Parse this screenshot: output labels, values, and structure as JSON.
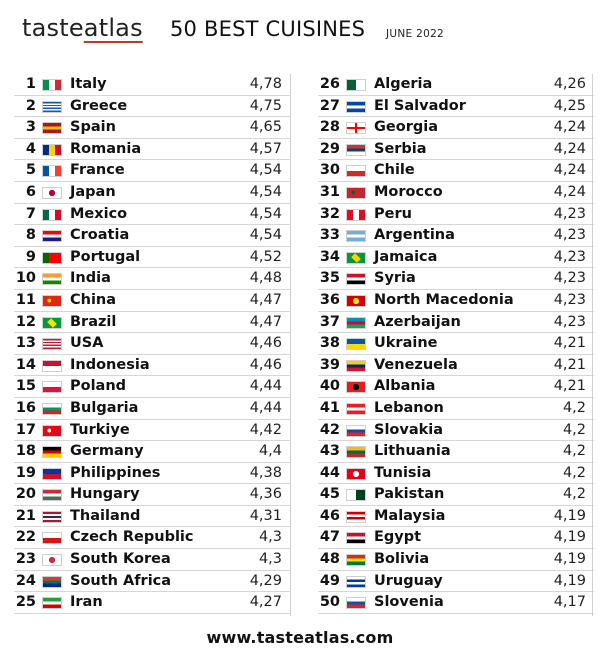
{
  "header": {
    "logo_main": "taste",
    "logo_accent": "atlas",
    "title": "50 BEST CUISINES",
    "date": "JUNE 2022"
  },
  "left_column": [
    {
      "rank": "1",
      "country": "Italy",
      "score": "4,78",
      "flag_colors": [
        "#009246",
        "#ffffff",
        "#ce2b37"
      ],
      "flag_layout": "vertical"
    },
    {
      "rank": "2",
      "country": "Greece",
      "score": "4,75",
      "flag_colors": [
        "#0d5eaf",
        "#ffffff"
      ],
      "flag_layout": "stripes"
    },
    {
      "rank": "3",
      "country": "Spain",
      "score": "4,65",
      "flag_colors": [
        "#aa151b",
        "#f1bf00",
        "#aa151b"
      ],
      "flag_layout": "horizontal"
    },
    {
      "rank": "4",
      "country": "Romania",
      "score": "4,57",
      "flag_colors": [
        "#002b7f",
        "#fcd116",
        "#ce1126"
      ],
      "flag_layout": "vertical"
    },
    {
      "rank": "5",
      "country": "France",
      "score": "4,54",
      "flag_colors": [
        "#0055a4",
        "#ffffff",
        "#ef4135"
      ],
      "flag_layout": "vertical"
    },
    {
      "rank": "6",
      "country": "Japan",
      "score": "4,54",
      "flag_colors": [
        "#ffffff",
        "#bc002d"
      ],
      "flag_layout": "circle"
    },
    {
      "rank": "7",
      "country": "Mexico",
      "score": "4,54",
      "flag_colors": [
        "#006847",
        "#ffffff",
        "#ce1126"
      ],
      "flag_layout": "vertical"
    },
    {
      "rank": "8",
      "country": "Croatia",
      "score": "4,54",
      "flag_colors": [
        "#ff0000",
        "#ffffff",
        "#171796"
      ],
      "flag_layout": "horizontal"
    },
    {
      "rank": "9",
      "country": "Portugal",
      "score": "4,52",
      "flag_colors": [
        "#006600",
        "#ff0000",
        "#ff0000"
      ],
      "flag_layout": "vertical"
    },
    {
      "rank": "10",
      "country": "India",
      "score": "4,48",
      "flag_colors": [
        "#ff9933",
        "#ffffff",
        "#138808"
      ],
      "flag_layout": "horizontal"
    },
    {
      "rank": "11",
      "country": "China",
      "score": "4,47",
      "flag_colors": [
        "#de2910",
        "#ffde00"
      ],
      "flag_layout": "star"
    },
    {
      "rank": "12",
      "country": "Brazil",
      "score": "4,47",
      "flag_colors": [
        "#009c3b",
        "#ffdf00"
      ],
      "flag_layout": "diamond"
    },
    {
      "rank": "13",
      "country": "USA",
      "score": "4,46",
      "flag_colors": [
        "#b22234",
        "#ffffff"
      ],
      "flag_layout": "stripes"
    },
    {
      "rank": "14",
      "country": "Indonesia",
      "score": "4,46",
      "flag_colors": [
        "#ce1126",
        "#ffffff"
      ],
      "flag_layout": "horizontal"
    },
    {
      "rank": "15",
      "country": "Poland",
      "score": "4,44",
      "flag_colors": [
        "#ffffff",
        "#dc143c"
      ],
      "flag_layout": "horizontal"
    },
    {
      "rank": "16",
      "country": "Bulgaria",
      "score": "4,44",
      "flag_colors": [
        "#ffffff",
        "#00966e",
        "#d62612"
      ],
      "flag_layout": "horizontal"
    },
    {
      "rank": "17",
      "country": "Turkiye",
      "score": "4,42",
      "flag_colors": [
        "#e30a17",
        "#ffffff"
      ],
      "flag_layout": "crescent"
    },
    {
      "rank": "18",
      "country": "Germany",
      "score": "4,4",
      "flag_colors": [
        "#000000",
        "#dd0000",
        "#ffce00"
      ],
      "flag_layout": "horizontal"
    },
    {
      "rank": "19",
      "country": "Philippines",
      "score": "4,38",
      "flag_colors": [
        "#0038a8",
        "#ce1126"
      ],
      "flag_layout": "horizontal"
    },
    {
      "rank": "20",
      "country": "Hungary",
      "score": "4,36",
      "flag_colors": [
        "#ce2939",
        "#ffffff",
        "#477050"
      ],
      "flag_layout": "horizontal"
    },
    {
      "rank": "21",
      "country": "Thailand",
      "score": "4,31",
      "flag_colors": [
        "#a51931",
        "#f4f5f8",
        "#2d2a4a",
        "#f4f5f8",
        "#a51931"
      ],
      "flag_layout": "horizontal"
    },
    {
      "rank": "22",
      "country": "Czech Republic",
      "score": "4,3",
      "flag_colors": [
        "#ffffff",
        "#d7141a"
      ],
      "flag_layout": "horizontal"
    },
    {
      "rank": "23",
      "country": "South Korea",
      "score": "4,3",
      "flag_colors": [
        "#ffffff",
        "#cd2e3a"
      ],
      "flag_layout": "circle"
    },
    {
      "rank": "24",
      "country": "South Africa",
      "score": "4,29",
      "flag_colors": [
        "#de3831",
        "#007a4d",
        "#002395"
      ],
      "flag_layout": "horizontal"
    },
    {
      "rank": "25",
      "country": "Iran",
      "score": "4,27",
      "flag_colors": [
        "#239f40",
        "#ffffff",
        "#da0000"
      ],
      "flag_layout": "horizontal"
    }
  ],
  "right_column": [
    {
      "rank": "26",
      "country": "Algeria",
      "score": "4,26",
      "flag_colors": [
        "#006233",
        "#ffffff"
      ],
      "flag_layout": "vertical"
    },
    {
      "rank": "27",
      "country": "El Salvador",
      "score": "4,25",
      "flag_colors": [
        "#0047ab",
        "#ffffff",
        "#0047ab"
      ],
      "flag_layout": "horizontal"
    },
    {
      "rank": "28",
      "country": "Georgia",
      "score": "4,24",
      "flag_colors": [
        "#ffffff",
        "#ff0000"
      ],
      "flag_layout": "cross"
    },
    {
      "rank": "29",
      "country": "Serbia",
      "score": "4,24",
      "flag_colors": [
        "#c6363c",
        "#0c4076",
        "#ffffff"
      ],
      "flag_layout": "horizontal"
    },
    {
      "rank": "30",
      "country": "Chile",
      "score": "4,24",
      "flag_colors": [
        "#ffffff",
        "#d52b1e"
      ],
      "flag_layout": "horizontal"
    },
    {
      "rank": "31",
      "country": "Morocco",
      "score": "4,24",
      "flag_colors": [
        "#c1272d",
        "#006233"
      ],
      "flag_layout": "star"
    },
    {
      "rank": "32",
      "country": "Peru",
      "score": "4,23",
      "flag_colors": [
        "#d91023",
        "#ffffff",
        "#d91023"
      ],
      "flag_layout": "vertical"
    },
    {
      "rank": "33",
      "country": "Argentina",
      "score": "4,23",
      "flag_colors": [
        "#74acdf",
        "#ffffff",
        "#74acdf"
      ],
      "flag_layout": "horizontal"
    },
    {
      "rank": "34",
      "country": "Jamaica",
      "score": "4,23",
      "flag_colors": [
        "#009b3a",
        "#fed100",
        "#000000"
      ],
      "flag_layout": "diamond"
    },
    {
      "rank": "35",
      "country": "Syria",
      "score": "4,23",
      "flag_colors": [
        "#ce1126",
        "#ffffff",
        "#000000"
      ],
      "flag_layout": "horizontal"
    },
    {
      "rank": "36",
      "country": "North Macedonia",
      "score": "4,23",
      "flag_colors": [
        "#d20000",
        "#ffe600"
      ],
      "flag_layout": "circle"
    },
    {
      "rank": "37",
      "country": "Azerbaijan",
      "score": "4,23",
      "flag_colors": [
        "#0092bc",
        "#e4002b",
        "#00af66"
      ],
      "flag_layout": "horizontal"
    },
    {
      "rank": "38",
      "country": "Ukraine",
      "score": "4,21",
      "flag_colors": [
        "#0057b7",
        "#ffd700"
      ],
      "flag_layout": "horizontal"
    },
    {
      "rank": "39",
      "country": "Venezuela",
      "score": "4,21",
      "flag_colors": [
        "#ffcc00",
        "#00247d",
        "#cf142b"
      ],
      "flag_layout": "horizontal"
    },
    {
      "rank": "40",
      "country": "Albania",
      "score": "4,21",
      "flag_colors": [
        "#e41e20",
        "#000000"
      ],
      "flag_layout": "circle"
    },
    {
      "rank": "41",
      "country": "Lebanon",
      "score": "4,2",
      "flag_colors": [
        "#ed1c24",
        "#ffffff",
        "#ed1c24"
      ],
      "flag_layout": "horizontal"
    },
    {
      "rank": "42",
      "country": "Slovakia",
      "score": "4,2",
      "flag_colors": [
        "#ffffff",
        "#0b4ea2",
        "#ee1c25"
      ],
      "flag_layout": "horizontal"
    },
    {
      "rank": "43",
      "country": "Lithuania",
      "score": "4,2",
      "flag_colors": [
        "#fdb913",
        "#006a44",
        "#c1272d"
      ],
      "flag_layout": "horizontal"
    },
    {
      "rank": "44",
      "country": "Tunisia",
      "score": "4,2",
      "flag_colors": [
        "#e70013",
        "#ffffff"
      ],
      "flag_layout": "circle"
    },
    {
      "rank": "45",
      "country": "Pakistan",
      "score": "4,2",
      "flag_colors": [
        "#ffffff",
        "#01411c"
      ],
      "flag_layout": "vertical"
    },
    {
      "rank": "46",
      "country": "Malaysia",
      "score": "4,19",
      "flag_colors": [
        "#cc0001",
        "#ffffff",
        "#cc0001",
        "#ffffff"
      ],
      "flag_layout": "horizontal"
    },
    {
      "rank": "47",
      "country": "Egypt",
      "score": "4,19",
      "flag_colors": [
        "#ce1126",
        "#ffffff",
        "#000000"
      ],
      "flag_layout": "horizontal"
    },
    {
      "rank": "48",
      "country": "Bolivia",
      "score": "4,19",
      "flag_colors": [
        "#d52b1e",
        "#f9e300",
        "#007934"
      ],
      "flag_layout": "horizontal"
    },
    {
      "rank": "49",
      "country": "Uruguay",
      "score": "4,19",
      "flag_colors": [
        "#ffffff",
        "#0038a8",
        "#ffffff",
        "#0038a8"
      ],
      "flag_layout": "horizontal"
    },
    {
      "rank": "50",
      "country": "Slovenia",
      "score": "4,17",
      "flag_colors": [
        "#ffffff",
        "#005da4",
        "#ed1c24"
      ],
      "flag_layout": "horizontal"
    }
  ],
  "footer": {
    "url": "www.tasteatlas.com"
  }
}
